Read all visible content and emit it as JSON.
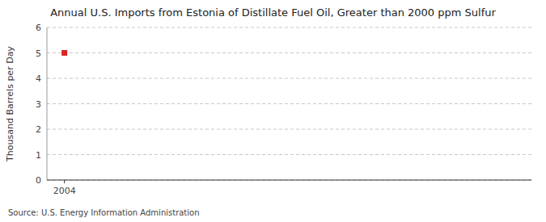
{
  "chart_data": {
    "type": "scatter",
    "title": "Annual U.S. Imports from Estonia of Distillate Fuel Oil, Greater than 2000 ppm Sulfur",
    "ylabel": "Thousand Barrels per Day",
    "annotations": [
      "Source: U.S. Energy Information Administration"
    ],
    "x": [
      2004
    ],
    "values": [
      5.0
    ],
    "xlim": [
      2003.4,
      2020
    ],
    "ylim": [
      0,
      6
    ],
    "xticks": [
      2004
    ],
    "yticks": [
      0,
      1,
      2,
      3,
      4,
      5,
      6
    ],
    "color": "#dd2222",
    "marker": "square",
    "grid": true
  }
}
